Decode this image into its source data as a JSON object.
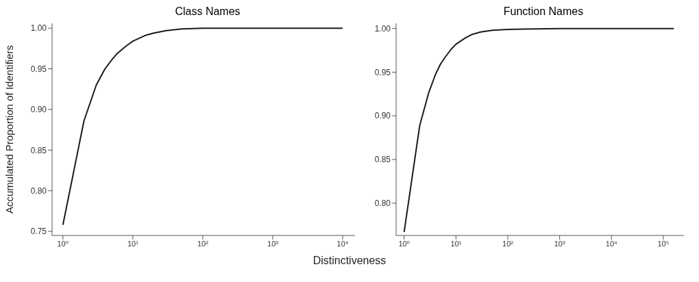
{
  "chart_data": [
    {
      "type": "line",
      "title": "Class Names",
      "xlabel": "Distinctiveness",
      "ylabel": "Accumulated Proportion of Identifiers",
      "log": "x",
      "grid": false,
      "marker": "none",
      "line_style": "solid",
      "xlim": [
        0.7,
        15000
      ],
      "xticks": [
        {
          "value": 1,
          "label": "10⁰"
        },
        {
          "value": 10,
          "label": "10¹"
        },
        {
          "value": 100,
          "label": "10²"
        },
        {
          "value": 1000,
          "label": "10³"
        },
        {
          "value": 10000,
          "label": "10⁴"
        }
      ],
      "ylim": [
        0.745,
        1.006
      ],
      "yticks": [
        0.75,
        {
          "value": 0.8,
          "label": "0.80"
        },
        0.85,
        {
          "value": 0.9,
          "label": "0.90"
        },
        0.95,
        {
          "value": 1.0,
          "label": "1.00"
        }
      ],
      "x": [
        1,
        2,
        3,
        4,
        5,
        6,
        8,
        10,
        15,
        20,
        30,
        50,
        100,
        1000,
        10000
      ],
      "series": [
        {
          "color": "#1a1a1a",
          "values": [
            0.758,
            0.886,
            0.93,
            0.95,
            0.961,
            0.969,
            0.978,
            0.984,
            0.991,
            0.994,
            0.997,
            0.999,
            1.0,
            1.0,
            1.0
          ]
        }
      ]
    },
    {
      "type": "line",
      "title": "Function Names",
      "log": "x",
      "grid": false,
      "marker": "none",
      "line_style": "solid",
      "xlim": [
        0.7,
        250000
      ],
      "xticks": [
        {
          "value": 1,
          "label": "10⁰"
        },
        {
          "value": 10,
          "label": "10¹"
        },
        {
          "value": 100,
          "label": "10²"
        },
        {
          "value": 1000,
          "label": "10³"
        },
        {
          "value": 10000,
          "label": "10⁴"
        },
        {
          "value": 100000,
          "label": "10⁵"
        }
      ],
      "ylim": [
        0.763,
        1.006
      ],
      "yticks": [
        {
          "value": 0.8,
          "label": "0.80"
        },
        0.85,
        {
          "value": 0.9,
          "label": "0.90"
        },
        0.95,
        {
          "value": 1.0,
          "label": "1.00"
        }
      ],
      "x": [
        1,
        2,
        3,
        4,
        5,
        6,
        8,
        10,
        15,
        20,
        30,
        50,
        100,
        1000,
        160000
      ],
      "series": [
        {
          "color": "#1a1a1a",
          "values": [
            0.767,
            0.889,
            0.927,
            0.947,
            0.959,
            0.966,
            0.976,
            0.982,
            0.989,
            0.993,
            0.996,
            0.998,
            0.999,
            1.0,
            1.0
          ]
        }
      ]
    }
  ]
}
